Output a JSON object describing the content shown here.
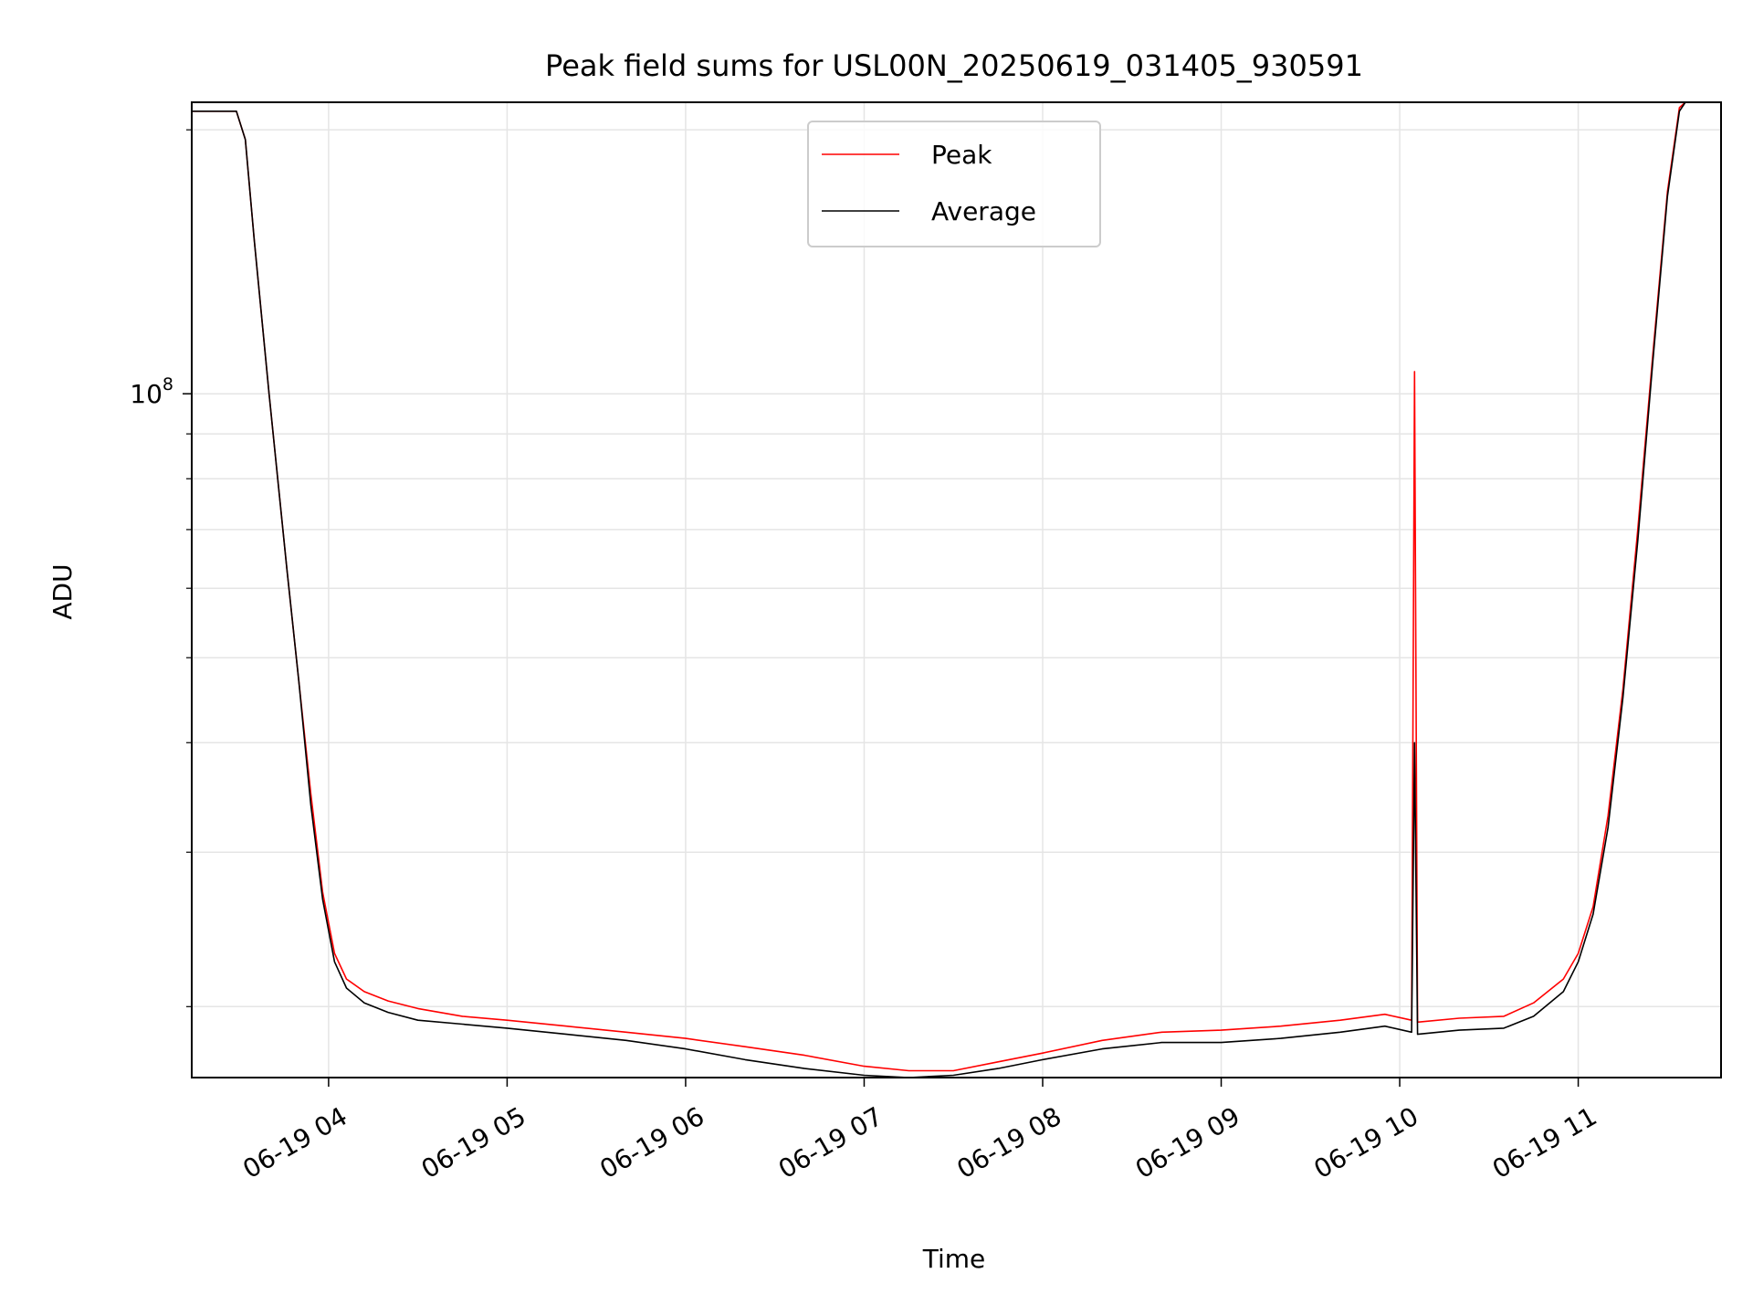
{
  "chart_data": {
    "type": "line",
    "title": "Peak field sums for USL00N_20250619_031405_930591",
    "xlabel": "Time",
    "ylabel": "ADU",
    "yscale": "log",
    "ylim": [
      16600000,
      215000000
    ],
    "xlim": [
      "2025-06-19 03:14",
      "2025-06-19 11:48"
    ],
    "grid": true,
    "legend_position": "top-center",
    "x_ticks": [
      {
        "value": "2025-06-19 04:00",
        "label": "06-19 04"
      },
      {
        "value": "2025-06-19 05:00",
        "label": "06-19 05"
      },
      {
        "value": "2025-06-19 06:00",
        "label": "06-19 06"
      },
      {
        "value": "2025-06-19 07:00",
        "label": "06-19 07"
      },
      {
        "value": "2025-06-19 08:00",
        "label": "06-19 08"
      },
      {
        "value": "2025-06-19 09:00",
        "label": "06-19 09"
      },
      {
        "value": "2025-06-19 10:00",
        "label": "06-19 10"
      },
      {
        "value": "2025-06-19 11:00",
        "label": "06-19 11"
      }
    ],
    "y_ticks": [
      {
        "value": 100000000,
        "base": "10",
        "exp": "8"
      }
    ],
    "y_minor_ticks": [
      20000000,
      30000000,
      40000000,
      50000000,
      60000000,
      70000000,
      80000000,
      90000000,
      200000000
    ],
    "series": [
      {
        "name": "Peak",
        "color": "#ff0000",
        "points": [
          [
            "2025-06-19 03:14",
            210000000
          ],
          [
            "2025-06-19 03:20",
            210000000
          ],
          [
            "2025-06-19 03:29",
            210000000
          ],
          [
            "2025-06-19 03:32",
            195000000
          ],
          [
            "2025-06-19 03:35",
            150000000
          ],
          [
            "2025-06-19 03:40",
            100000000
          ],
          [
            "2025-06-19 03:46",
            63000000
          ],
          [
            "2025-06-19 03:50",
            47000000
          ],
          [
            "2025-06-19 03:54",
            35000000
          ],
          [
            "2025-06-19 03:58",
            27000000
          ],
          [
            "2025-06-19 04:02",
            23000000
          ],
          [
            "2025-06-19 04:06",
            21500000
          ],
          [
            "2025-06-19 04:12",
            20800000
          ],
          [
            "2025-06-19 04:20",
            20300000
          ],
          [
            "2025-06-19 04:30",
            19900000
          ],
          [
            "2025-06-19 04:45",
            19500000
          ],
          [
            "2025-06-19 05:00",
            19300000
          ],
          [
            "2025-06-19 05:20",
            19000000
          ],
          [
            "2025-06-19 05:40",
            18700000
          ],
          [
            "2025-06-19 06:00",
            18400000
          ],
          [
            "2025-06-19 06:20",
            18000000
          ],
          [
            "2025-06-19 06:40",
            17600000
          ],
          [
            "2025-06-19 07:00",
            17100000
          ],
          [
            "2025-06-19 07:15",
            16900000
          ],
          [
            "2025-06-19 07:30",
            16900000
          ],
          [
            "2025-06-19 07:45",
            17300000
          ],
          [
            "2025-06-19 08:00",
            17700000
          ],
          [
            "2025-06-19 08:20",
            18300000
          ],
          [
            "2025-06-19 08:40",
            18700000
          ],
          [
            "2025-06-19 09:00",
            18800000
          ],
          [
            "2025-06-19 09:20",
            19000000
          ],
          [
            "2025-06-19 09:40",
            19300000
          ],
          [
            "2025-06-19 09:55",
            19600000
          ],
          [
            "2025-06-19 10:04",
            19300000
          ],
          [
            "2025-06-19 10:05",
            106000000
          ],
          [
            "2025-06-19 10:06",
            19200000
          ],
          [
            "2025-06-19 10:20",
            19400000
          ],
          [
            "2025-06-19 10:35",
            19500000
          ],
          [
            "2025-06-19 10:45",
            20200000
          ],
          [
            "2025-06-19 10:55",
            21500000
          ],
          [
            "2025-06-19 11:00",
            23000000
          ],
          [
            "2025-06-19 11:05",
            26000000
          ],
          [
            "2025-06-19 11:10",
            33000000
          ],
          [
            "2025-06-19 11:15",
            46000000
          ],
          [
            "2025-06-19 11:20",
            70000000
          ],
          [
            "2025-06-19 11:25",
            110000000
          ],
          [
            "2025-06-19 11:30",
            170000000
          ],
          [
            "2025-06-19 11:34",
            212000000
          ],
          [
            "2025-06-19 11:36",
            215000000
          ]
        ]
      },
      {
        "name": "Average",
        "color": "#000000",
        "points": [
          [
            "2025-06-19 03:14",
            210000000
          ],
          [
            "2025-06-19 03:20",
            210000000
          ],
          [
            "2025-06-19 03:29",
            210000000
          ],
          [
            "2025-06-19 03:32",
            195000000
          ],
          [
            "2025-06-19 03:35",
            150000000
          ],
          [
            "2025-06-19 03:40",
            100000000
          ],
          [
            "2025-06-19 03:46",
            63000000
          ],
          [
            "2025-06-19 03:50",
            47000000
          ],
          [
            "2025-06-19 03:54",
            34000000
          ],
          [
            "2025-06-19 03:58",
            26500000
          ],
          [
            "2025-06-19 04:02",
            22500000
          ],
          [
            "2025-06-19 04:06",
            21000000
          ],
          [
            "2025-06-19 04:12",
            20200000
          ],
          [
            "2025-06-19 04:20",
            19700000
          ],
          [
            "2025-06-19 04:30",
            19300000
          ],
          [
            "2025-06-19 04:45",
            19100000
          ],
          [
            "2025-06-19 05:00",
            18900000
          ],
          [
            "2025-06-19 05:20",
            18600000
          ],
          [
            "2025-06-19 05:40",
            18300000
          ],
          [
            "2025-06-19 06:00",
            17900000
          ],
          [
            "2025-06-19 06:20",
            17400000
          ],
          [
            "2025-06-19 06:40",
            17000000
          ],
          [
            "2025-06-19 07:00",
            16700000
          ],
          [
            "2025-06-19 07:15",
            16600000
          ],
          [
            "2025-06-19 07:30",
            16700000
          ],
          [
            "2025-06-19 07:45",
            17000000
          ],
          [
            "2025-06-19 08:00",
            17400000
          ],
          [
            "2025-06-19 08:20",
            17900000
          ],
          [
            "2025-06-19 08:40",
            18200000
          ],
          [
            "2025-06-19 09:00",
            18200000
          ],
          [
            "2025-06-19 09:20",
            18400000
          ],
          [
            "2025-06-19 09:40",
            18700000
          ],
          [
            "2025-06-19 09:55",
            19000000
          ],
          [
            "2025-06-19 10:04",
            18700000
          ],
          [
            "2025-06-19 10:05",
            40000000
          ],
          [
            "2025-06-19 10:06",
            18600000
          ],
          [
            "2025-06-19 10:20",
            18800000
          ],
          [
            "2025-06-19 10:35",
            18900000
          ],
          [
            "2025-06-19 10:45",
            19500000
          ],
          [
            "2025-06-19 10:55",
            20800000
          ],
          [
            "2025-06-19 11:00",
            22500000
          ],
          [
            "2025-06-19 11:05",
            25500000
          ],
          [
            "2025-06-19 11:10",
            32000000
          ],
          [
            "2025-06-19 11:15",
            45000000
          ],
          [
            "2025-06-19 11:20",
            68000000
          ],
          [
            "2025-06-19 11:25",
            108000000
          ],
          [
            "2025-06-19 11:30",
            168000000
          ],
          [
            "2025-06-19 11:34",
            210000000
          ],
          [
            "2025-06-19 11:36",
            215000000
          ]
        ]
      }
    ]
  }
}
